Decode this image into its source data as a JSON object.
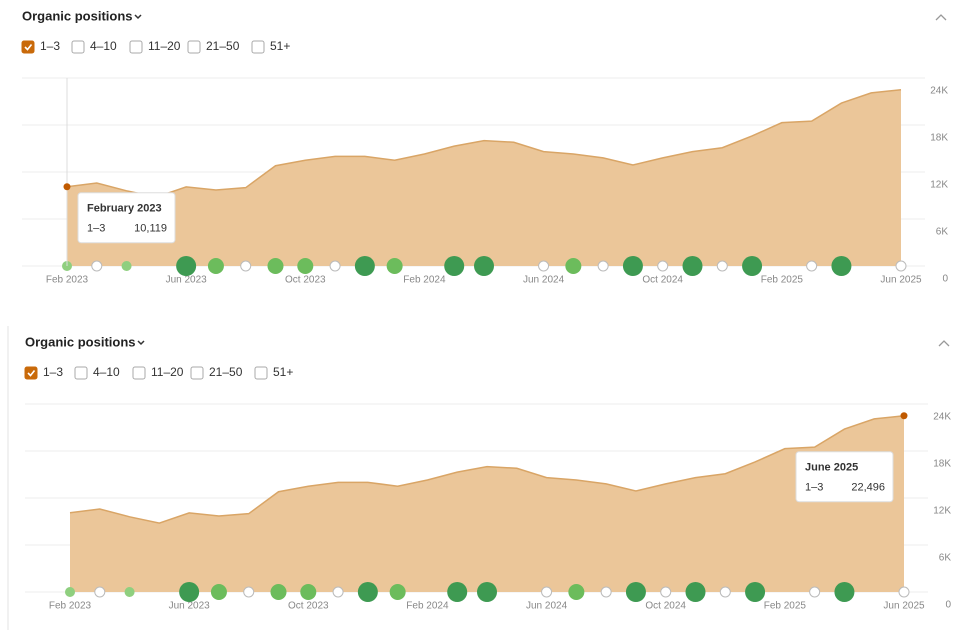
{
  "chart_data": [
    {
      "type": "area",
      "title": "Organic positions",
      "categories": [
        "Feb 2023",
        null,
        null,
        null,
        "Jun 2023",
        null,
        null,
        null,
        "Oct 2023",
        null,
        null,
        null,
        "Feb 2024",
        null,
        null,
        null,
        "Jun 2024",
        null,
        null,
        null,
        "Oct 2024",
        null,
        null,
        null,
        "Feb 2025",
        null,
        null,
        null,
        "Jun 2025"
      ],
      "series": [
        {
          "name": "1–3",
          "color": "#ebc699",
          "line_color": "#d9a566",
          "checked": true,
          "values": [
            10119,
            10600,
            9600,
            8800,
            10100,
            9700,
            10000,
            12800,
            13500,
            14000,
            14000,
            13500,
            14300,
            15300,
            16000,
            15800,
            14600,
            14300,
            13800,
            12900,
            13800,
            14600,
            15100,
            16600,
            18300,
            18500,
            20800,
            22100,
            22496
          ],
          "value_labels": [
            "10,119",
            null,
            null,
            null,
            null,
            null,
            null,
            null,
            null,
            null,
            null,
            null,
            null,
            null,
            null,
            null,
            null,
            null,
            null,
            null,
            null,
            null,
            null,
            null,
            null,
            null,
            null,
            null,
            null
          ]
        }
      ],
      "other_options": [
        "4–10",
        "11–20",
        "21–50",
        "51+"
      ],
      "tooltip_title": "February 2023",
      "ylim": [
        0,
        24000
      ],
      "yticks": [
        0,
        {
          "value": 6000,
          "label": "6K"
        },
        {
          "value": 12000,
          "label": "12K"
        },
        {
          "value": 18000,
          "label": "18K"
        },
        {
          "value": 24000,
          "label": "24K"
        }
      ],
      "grid": true
    },
    {
      "type": "area",
      "title": "Organic positions",
      "categories": [
        "Feb 2023",
        null,
        null,
        null,
        "Jun 2023",
        null,
        null,
        null,
        "Oct 2023",
        null,
        null,
        null,
        "Feb 2024",
        null,
        null,
        null,
        "Jun 2024",
        null,
        null,
        null,
        "Oct 2024",
        null,
        null,
        null,
        "Feb 2025",
        null,
        null,
        null,
        "Jun 2025"
      ],
      "series": [
        {
          "name": "1–3",
          "color": "#ebc699",
          "line_color": "#d9a566",
          "checked": true,
          "values": [
            10119,
            10600,
            9600,
            8800,
            10100,
            9700,
            10000,
            12800,
            13500,
            14000,
            14000,
            13500,
            14300,
            15300,
            16000,
            15800,
            14600,
            14300,
            13800,
            12900,
            13800,
            14600,
            15100,
            16600,
            18300,
            18500,
            20800,
            22100,
            22496
          ],
          "value_labels": [
            null,
            null,
            null,
            null,
            null,
            null,
            null,
            null,
            null,
            null,
            null,
            null,
            null,
            null,
            null,
            null,
            null,
            null,
            null,
            null,
            null,
            null,
            null,
            null,
            null,
            null,
            null,
            null,
            "22,496"
          ]
        }
      ],
      "other_options": [
        "4–10",
        "11–20",
        "21–50",
        "51+"
      ],
      "tooltip_title": "June 2025",
      "ylim": [
        0,
        24000
      ],
      "yticks": [
        0,
        {
          "value": 6000,
          "label": "6K"
        },
        {
          "value": 12000,
          "label": "12K"
        },
        {
          "value": 18000,
          "label": "18K"
        },
        {
          "value": 24000,
          "label": "24K"
        }
      ],
      "grid": true
    }
  ]
}
